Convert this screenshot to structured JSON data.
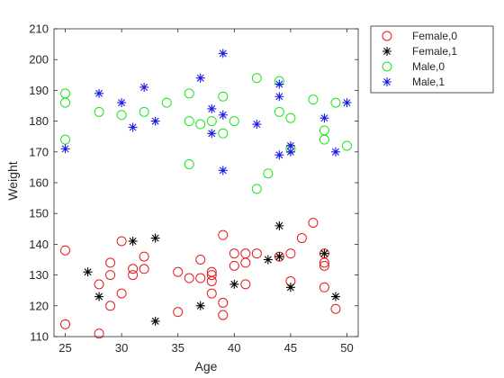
{
  "chart_data": {
    "type": "scatter",
    "title": "",
    "xlabel": "Age",
    "ylabel": "Weight",
    "xlim": [
      24,
      51
    ],
    "ylim": [
      110,
      210
    ],
    "xticks": [
      25,
      30,
      35,
      40,
      45,
      50
    ],
    "yticks": [
      110,
      120,
      130,
      140,
      150,
      160,
      170,
      180,
      190,
      200,
      210
    ],
    "grid": false,
    "legend_position": "outside-top-right",
    "series": [
      {
        "name": "Female,0",
        "color": "#e61919",
        "marker": "circle",
        "points": [
          [
            25,
            138
          ],
          [
            25,
            114
          ],
          [
            28,
            127
          ],
          [
            28,
            111
          ],
          [
            29,
            130
          ],
          [
            29,
            134
          ],
          [
            29,
            120
          ],
          [
            30,
            141
          ],
          [
            30,
            124
          ],
          [
            31,
            130
          ],
          [
            31,
            132
          ],
          [
            32,
            136
          ],
          [
            32,
            132
          ],
          [
            35,
            131
          ],
          [
            35,
            118
          ],
          [
            36,
            129
          ],
          [
            37,
            135
          ],
          [
            37,
            129
          ],
          [
            38,
            131
          ],
          [
            38,
            130
          ],
          [
            38,
            128
          ],
          [
            38,
            124
          ],
          [
            39,
            143
          ],
          [
            39,
            121
          ],
          [
            39,
            117
          ],
          [
            40,
            137
          ],
          [
            40,
            133
          ],
          [
            41,
            137
          ],
          [
            41,
            134
          ],
          [
            41,
            127
          ],
          [
            42,
            137
          ],
          [
            44,
            136
          ],
          [
            45,
            137
          ],
          [
            45,
            128
          ],
          [
            46,
            142
          ],
          [
            47,
            147
          ],
          [
            48,
            137
          ],
          [
            48,
            134
          ],
          [
            48,
            133
          ],
          [
            48,
            126
          ],
          [
            49,
            119
          ]
        ]
      },
      {
        "name": "Female,1",
        "color": "#000000",
        "marker": "star",
        "points": [
          [
            27,
            131
          ],
          [
            28,
            123
          ],
          [
            31,
            141
          ],
          [
            33,
            142
          ],
          [
            33,
            115
          ],
          [
            37,
            120
          ],
          [
            40,
            127
          ],
          [
            43,
            135
          ],
          [
            44,
            146
          ],
          [
            44,
            136
          ],
          [
            45,
            126
          ],
          [
            48,
            137
          ],
          [
            49,
            123
          ]
        ]
      },
      {
        "name": "Male,0",
        "color": "#19e619",
        "marker": "circle",
        "points": [
          [
            25,
            189
          ],
          [
            25,
            186
          ],
          [
            25,
            174
          ],
          [
            28,
            183
          ],
          [
            30,
            182
          ],
          [
            32,
            183
          ],
          [
            34,
            186
          ],
          [
            36,
            189
          ],
          [
            36,
            180
          ],
          [
            36,
            166
          ],
          [
            37,
            179
          ],
          [
            38,
            180
          ],
          [
            39,
            188
          ],
          [
            39,
            176
          ],
          [
            40,
            180
          ],
          [
            42,
            194
          ],
          [
            42,
            158
          ],
          [
            43,
            163
          ],
          [
            44,
            193
          ],
          [
            44,
            183
          ],
          [
            45,
            181
          ],
          [
            45,
            171
          ],
          [
            47,
            187
          ],
          [
            48,
            177
          ],
          [
            48,
            174
          ],
          [
            49,
            186
          ],
          [
            50,
            172
          ]
        ]
      },
      {
        "name": "Male,1",
        "color": "#1919e6",
        "marker": "star",
        "points": [
          [
            25,
            171
          ],
          [
            28,
            189
          ],
          [
            30,
            186
          ],
          [
            31,
            178
          ],
          [
            32,
            191
          ],
          [
            33,
            180
          ],
          [
            37,
            194
          ],
          [
            38,
            184
          ],
          [
            38,
            176
          ],
          [
            39,
            202
          ],
          [
            39,
            182
          ],
          [
            39,
            164
          ],
          [
            42,
            179
          ],
          [
            44,
            192
          ],
          [
            44,
            188
          ],
          [
            44,
            169
          ],
          [
            45,
            172
          ],
          [
            45,
            170
          ],
          [
            48,
            181
          ],
          [
            49,
            170
          ],
          [
            50,
            186
          ]
        ]
      }
    ]
  }
}
